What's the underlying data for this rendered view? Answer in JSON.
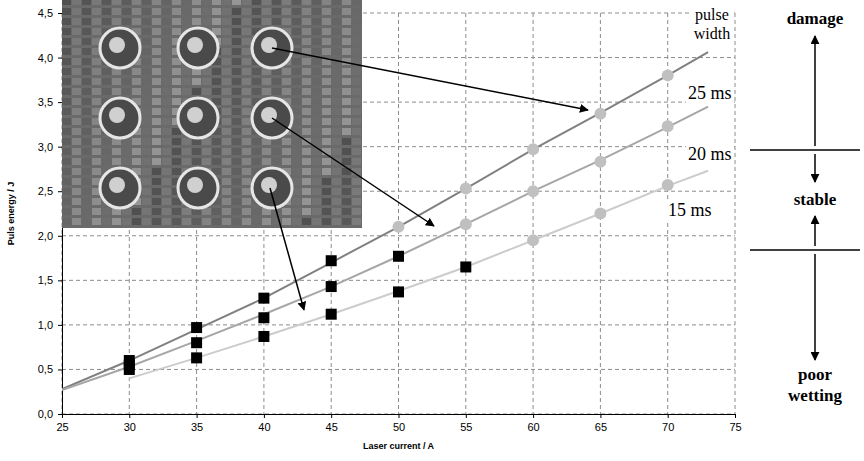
{
  "chart_data": {
    "type": "line",
    "x_label": "Laser current / A",
    "y_label": "Puls energy / J",
    "legend_title": "pulse width",
    "annotations": [
      "damage",
      "stable",
      "poor wetting"
    ],
    "xlim": [
      25,
      75
    ],
    "xticks": [
      25,
      30,
      35,
      40,
      45,
      50,
      55,
      60,
      65,
      70,
      75
    ],
    "ylim": [
      0,
      4.5
    ],
    "yticks": [
      {
        "value": 0,
        "label": "0,0"
      },
      {
        "value": 0.5,
        "label": "0,5"
      },
      {
        "value": 1,
        "label": "1,0"
      },
      {
        "value": 1.5,
        "label": "1,5"
      },
      {
        "value": 2,
        "label": "2,0"
      },
      {
        "value": 2.5,
        "label": "2,5"
      },
      {
        "value": 3,
        "label": "3,0"
      },
      {
        "value": 3.5,
        "label": "3,5"
      },
      {
        "value": 4,
        "label": "4,0"
      },
      {
        "value": 4.5,
        "label": "4,5"
      }
    ],
    "grid": true,
    "legend": "right",
    "series": [
      {
        "name": "25 ms",
        "type": "line",
        "marker": "none",
        "line_style": "solid",
        "color": "#808080",
        "x": [
          25,
          30,
          35,
          40,
          45,
          50,
          55,
          60,
          65,
          70,
          73
        ],
        "values": [
          0.28,
          0.6,
          0.95,
          1.3,
          1.7,
          2.1,
          2.53,
          2.97,
          3.38,
          3.8,
          4.06
        ]
      },
      {
        "name": "20 ms",
        "type": "line",
        "marker": "none",
        "line_style": "solid",
        "color": "#a6a6a6",
        "x": [
          25,
          30,
          35,
          40,
          45,
          50,
          55,
          60,
          65,
          70,
          73
        ],
        "values": [
          0.27,
          0.53,
          0.82,
          1.12,
          1.43,
          1.77,
          2.13,
          2.5,
          2.85,
          3.22,
          3.45
        ]
      },
      {
        "name": "15 ms",
        "type": "line",
        "marker": "none",
        "line_style": "solid",
        "color": "#cccccc",
        "x": [
          30,
          35,
          40,
          45,
          50,
          55,
          60,
          65,
          70,
          73
        ],
        "values": [
          0.4,
          0.63,
          0.87,
          1.12,
          1.38,
          1.65,
          1.95,
          2.25,
          2.56,
          2.73
        ]
      },
      {
        "type": "scatter",
        "marker": "circle",
        "color": "#c0c0c0",
        "x": [
          50,
          55,
          60,
          65,
          70
        ],
        "values": [
          2.1,
          2.53,
          2.97,
          3.37,
          3.8
        ]
      },
      {
        "type": "scatter",
        "marker": "circle",
        "color": "#c0c0c0",
        "x": [
          55,
          60,
          65,
          70
        ],
        "values": [
          2.13,
          2.5,
          2.83,
          3.23
        ]
      },
      {
        "type": "scatter",
        "marker": "circle",
        "color": "#c0c0c0",
        "x": [
          60,
          65,
          70
        ],
        "values": [
          1.95,
          2.25,
          2.57
        ]
      },
      {
        "type": "scatter",
        "marker": "square",
        "color": "#000000",
        "x": [
          30,
          35,
          40,
          45
        ],
        "values": [
          0.6,
          0.97,
          1.3,
          1.72
        ]
      },
      {
        "type": "scatter",
        "marker": "square",
        "color": "#000000",
        "x": [
          30,
          35,
          40,
          45,
          50
        ],
        "values": [
          0.55,
          0.8,
          1.08,
          1.43,
          1.77
        ]
      },
      {
        "type": "scatter",
        "marker": "square",
        "color": "#000000",
        "x": [
          30,
          35,
          40,
          45,
          50,
          55
        ],
        "values": [
          0.5,
          0.63,
          0.87,
          1.12,
          1.37,
          1.65
        ]
      }
    ]
  }
}
